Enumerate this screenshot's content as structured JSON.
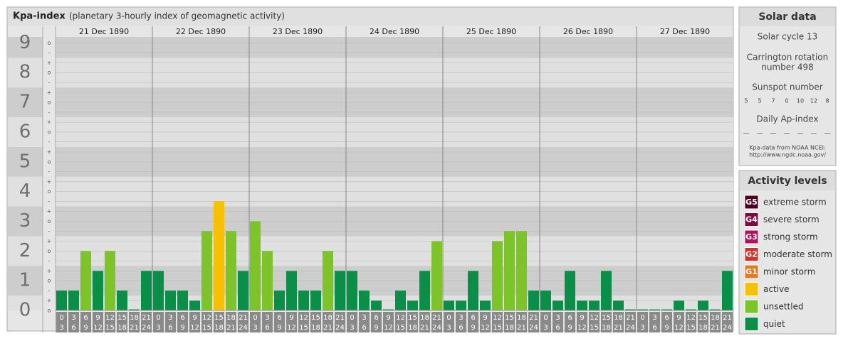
{
  "chart_data": {
    "type": "bar",
    "title": "Kpa-index",
    "subtitle": "(planetary 3-hourly index of geomagnetic activity)",
    "ylim": [
      0,
      9.2
    ],
    "yticks": [
      0,
      1,
      2,
      3,
      4,
      5,
      6,
      7,
      8,
      9
    ],
    "yticks_minor": [
      {
        "value": 0,
        "label": "o"
      },
      {
        "value": 0.33,
        "label": "+"
      },
      {
        "value": 0.67,
        "label": "-"
      },
      {
        "value": 1,
        "label": "o"
      },
      {
        "value": 1.33,
        "label": "+"
      },
      {
        "value": 1.67,
        "label": "-"
      },
      {
        "value": 2,
        "label": "o"
      },
      {
        "value": 2.33,
        "label": "+"
      },
      {
        "value": 2.67,
        "label": "-"
      },
      {
        "value": 3,
        "label": "o"
      },
      {
        "value": 3.33,
        "label": "+"
      },
      {
        "value": 3.67,
        "label": "-"
      },
      {
        "value": 4,
        "label": "o"
      },
      {
        "value": 4.33,
        "label": "+"
      },
      {
        "value": 4.67,
        "label": "-"
      },
      {
        "value": 5,
        "label": "o"
      },
      {
        "value": 5.33,
        "label": "+"
      },
      {
        "value": 5.67,
        "label": "-"
      },
      {
        "value": 6,
        "label": "o"
      },
      {
        "value": 6.33,
        "label": "+"
      },
      {
        "value": 6.67,
        "label": "-"
      },
      {
        "value": 7,
        "label": "o"
      },
      {
        "value": 7.33,
        "label": "+"
      },
      {
        "value": 7.67,
        "label": "-"
      },
      {
        "value": 8,
        "label": "o"
      },
      {
        "value": 8.33,
        "label": "+"
      },
      {
        "value": 8.67,
        "label": "-"
      },
      {
        "value": 9,
        "label": "o"
      }
    ],
    "time_slots": [
      [
        "0",
        "3"
      ],
      [
        "3",
        "6"
      ],
      [
        "6",
        "9"
      ],
      [
        "9",
        "12"
      ],
      [
        "12",
        "15"
      ],
      [
        "15",
        "18"
      ],
      [
        "18",
        "21"
      ],
      [
        "21",
        "24"
      ]
    ],
    "days": [
      {
        "date": "21 Dec 1890",
        "values": [
          0.67,
          0.67,
          2,
          1.33,
          2,
          0.67,
          0,
          1.33
        ],
        "colors": [
          "#0a8f48",
          "#0a8f48",
          "#7cc427",
          "#0a8f48",
          "#7cc427",
          "#0a8f48",
          "#0a8f48",
          "#0a8f48"
        ]
      },
      {
        "date": "22 Dec 1890",
        "values": [
          1.33,
          0.67,
          0.67,
          0.33,
          2.67,
          3.67,
          2.67,
          1.33
        ],
        "colors": [
          "#0a8f48",
          "#0a8f48",
          "#0a8f48",
          "#0a8f48",
          "#7cc427",
          "#f7c100",
          "#7cc427",
          "#0a8f48"
        ]
      },
      {
        "date": "23 Dec 1890",
        "values": [
          3,
          2,
          0.67,
          1.33,
          0.67,
          0.67,
          2,
          1.33
        ],
        "colors": [
          "#7cc427",
          "#7cc427",
          "#0a8f48",
          "#0a8f48",
          "#0a8f48",
          "#0a8f48",
          "#7cc427",
          "#0a8f48"
        ]
      },
      {
        "date": "24 Dec 1890",
        "values": [
          1.33,
          0.67,
          0.33,
          0,
          0.67,
          0.33,
          1.33,
          2.33
        ],
        "colors": [
          "#0a8f48",
          "#0a8f48",
          "#0a8f48",
          "#0a8f48",
          "#0a8f48",
          "#0a8f48",
          "#0a8f48",
          "#7cc427"
        ]
      },
      {
        "date": "25 Dec 1890",
        "values": [
          0.33,
          0.33,
          1.33,
          0.33,
          2.33,
          2.67,
          2.67,
          0.67
        ],
        "colors": [
          "#0a8f48",
          "#0a8f48",
          "#0a8f48",
          "#0a8f48",
          "#7cc427",
          "#7cc427",
          "#7cc427",
          "#0a8f48"
        ]
      },
      {
        "date": "26 Dec 1890",
        "values": [
          0.67,
          0.33,
          1.33,
          0.33,
          0.33,
          1.33,
          0.33,
          0
        ],
        "colors": [
          "#0a8f48",
          "#0a8f48",
          "#0a8f48",
          "#0a8f48",
          "#0a8f48",
          "#0a8f48",
          "#0a8f48",
          "#0a8f48"
        ]
      },
      {
        "date": "27 Dec 1890",
        "values": [
          0,
          0,
          0,
          0.33,
          0,
          0.33,
          0,
          1.33
        ],
        "colors": [
          "#0a8f48",
          "#0a8f48",
          "#0a8f48",
          "#0a8f48",
          "#0a8f48",
          "#0a8f48",
          "#0a8f48",
          "#0a8f48"
        ]
      }
    ]
  },
  "side": {
    "solar_title": "Solar data",
    "solar_cycle": "Solar cycle 13",
    "carrington": [
      "Carrington rotation",
      "number 498"
    ],
    "sunspot_title": "Sunspot number",
    "sunspot_numbers": [
      5,
      5,
      7,
      0,
      10,
      12,
      8
    ],
    "ap_title": "Daily Ap-index",
    "ap_values": [
      "—",
      "—",
      "—",
      "—",
      "—",
      "—",
      "—"
    ],
    "source": [
      "Kpa-data from NOAA NCEI:",
      "http://www.ngdc.noaa.gov/"
    ],
    "levels_title": "Activity levels",
    "levels": [
      {
        "badge": "G5",
        "label": "extreme storm",
        "color": "#4a0021"
      },
      {
        "badge": "G4",
        "label": "severe storm",
        "color": "#7a0c40"
      },
      {
        "badge": "G3",
        "label": "strong storm",
        "color": "#b0125c"
      },
      {
        "badge": "G2",
        "label": "moderate storm",
        "color": "#c8372d"
      },
      {
        "badge": "G1",
        "label": "minor storm",
        "color": "#e07a20"
      },
      {
        "badge": null,
        "label": "active",
        "color": "#f7c100"
      },
      {
        "badge": null,
        "label": "unsettled",
        "color": "#7cc427"
      },
      {
        "badge": null,
        "label": "quiet",
        "color": "#0a8f48"
      }
    ]
  }
}
